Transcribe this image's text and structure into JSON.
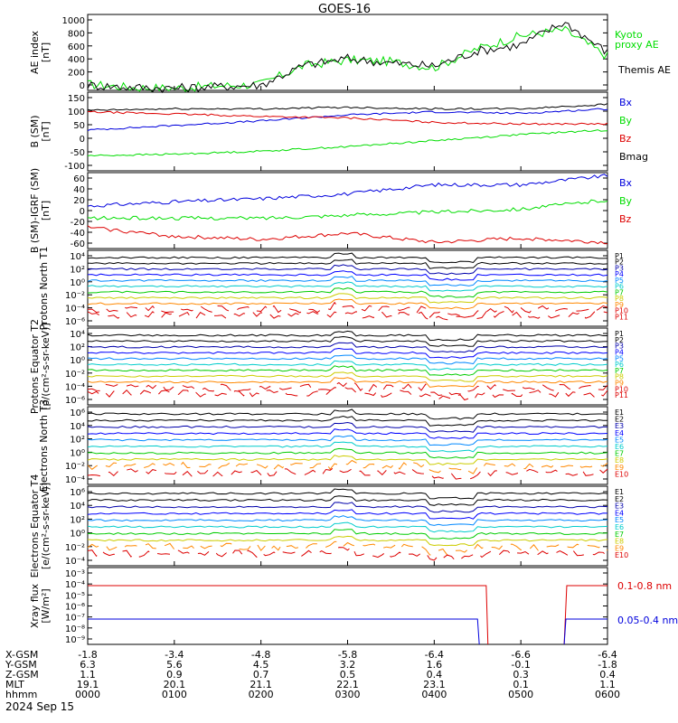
{
  "title": "GOES-16",
  "date_label": "2024 Sep 15",
  "x_axis": {
    "ticks": [
      "0000",
      "0100",
      "0200",
      "0300",
      "0400",
      "0500",
      "0600"
    ],
    "rows": [
      {
        "label": "X-GSM",
        "values": [
          "-1.8",
          "-3.4",
          "-4.8",
          "-5.8",
          "-6.4",
          "-6.6",
          "-6.4"
        ]
      },
      {
        "label": "Y-GSM",
        "values": [
          "6.3",
          "5.6",
          "4.5",
          "3.2",
          "1.6",
          "-0.1",
          "-1.8"
        ]
      },
      {
        "label": "Z-GSM",
        "values": [
          "1.1",
          "0.9",
          "0.7",
          "0.5",
          "0.4",
          "0.3",
          "0.4"
        ]
      },
      {
        "label": "MLT",
        "values": [
          "19.1",
          "20.1",
          "21.1",
          "22.1",
          "23.1",
          "0.1",
          "1.1"
        ]
      },
      {
        "label": "hhmm",
        "values": [
          "0000",
          "0100",
          "0200",
          "0300",
          "0400",
          "0500",
          "0600"
        ]
      }
    ]
  },
  "colors": {
    "black": "#000000",
    "green": "#00dd00",
    "blue": "#0000dd",
    "red": "#dd0000"
  },
  "chart_data": [
    {
      "type": "line",
      "ylabel": "AE index [nT]",
      "ylim": [
        0,
        1000
      ],
      "ytick_labels": [
        "1000",
        "800",
        "600",
        "400",
        "200",
        "0"
      ],
      "x_hours": [
        0,
        0.5,
        1,
        1.5,
        2,
        2.5,
        3,
        3.5,
        4,
        4.5,
        5,
        5.5,
        6
      ],
      "series": [
        {
          "name": "Kyoto proxy AE",
          "color": "#00dd00",
          "values": [
            80,
            40,
            30,
            60,
            80,
            330,
            400,
            380,
            300,
            550,
            720,
            800,
            450
          ]
        },
        {
          "name": "Themis AE",
          "color": "#000000",
          "values": [
            70,
            40,
            30,
            50,
            70,
            330,
            420,
            360,
            320,
            520,
            600,
            900,
            500
          ]
        }
      ]
    },
    {
      "type": "line",
      "ylabel": "B (SM) [nT]",
      "ylim": [
        -110,
        150
      ],
      "ytick_labels": [
        "150",
        "100",
        "50",
        "0",
        "-50",
        "-100"
      ],
      "x_hours": [
        0,
        1,
        2,
        3,
        4,
        5,
        6
      ],
      "series": [
        {
          "name": "Bx",
          "color": "#0000dd",
          "values": [
            25,
            40,
            55,
            75,
            85,
            80,
            95
          ]
        },
        {
          "name": "By",
          "color": "#00dd00",
          "values": [
            -60,
            -55,
            -45,
            -30,
            -10,
            10,
            25
          ]
        },
        {
          "name": "Bz",
          "color": "#dd0000",
          "values": [
            85,
            78,
            70,
            65,
            50,
            45,
            45
          ]
        },
        {
          "name": "Bmag",
          "color": "#000000",
          "values": [
            90,
            95,
            95,
            100,
            95,
            95,
            110
          ]
        }
      ]
    },
    {
      "type": "line",
      "ylabel": "B (SM)-IGRF (SM) [nT]",
      "ylim": [
        -65,
        60
      ],
      "ytick_labels": [
        "60",
        "40",
        "20",
        "0",
        "-20",
        "-40",
        "-60"
      ],
      "x_hours": [
        0,
        1,
        2,
        3,
        4,
        5,
        6
      ],
      "series": [
        {
          "name": "Bx",
          "color": "#0000dd",
          "values": [
            5,
            12,
            17,
            25,
            40,
            40,
            55
          ]
        },
        {
          "name": "By",
          "color": "#00dd00",
          "values": [
            -15,
            -15,
            -15,
            -10,
            -5,
            0,
            15
          ]
        },
        {
          "name": "Bz",
          "color": "#dd0000",
          "values": [
            -30,
            -45,
            -50,
            -40,
            -55,
            -48,
            -55
          ]
        }
      ]
    },
    {
      "type": "line",
      "ylabel": "Protons North T1",
      "yscale": "log",
      "ytick_labels": [
        "10⁴",
        "10²",
        "10⁰",
        "10⁻²",
        "10⁻⁴",
        "10⁻⁶"
      ],
      "legend": [
        "P1",
        "P2",
        "P3",
        "P4",
        "P5",
        "P6",
        "P7",
        "P8",
        "P9",
        "P10",
        "P11"
      ]
    },
    {
      "type": "line",
      "ylabel": "Protons Equator T2 [p/(cm²-s-sr-keV)]",
      "yscale": "log",
      "ytick_labels": [
        "10⁴",
        "10²",
        "10⁰",
        "10⁻²",
        "10⁻⁴",
        "10⁻⁶"
      ],
      "legend": [
        "P1",
        "P2",
        "P3",
        "P4",
        "P5",
        "P6",
        "P7",
        "P8",
        "P9",
        "P10",
        "P11"
      ]
    },
    {
      "type": "line",
      "ylabel": "Electrons North T3",
      "yscale": "log",
      "ytick_labels": [
        "10⁶",
        "10⁴",
        "10²",
        "10⁰",
        "10⁻²",
        "10⁻⁴"
      ],
      "legend": [
        "E1",
        "E2",
        "E3",
        "E4",
        "E5",
        "E6",
        "E7",
        "E8",
        "E9",
        "E10"
      ]
    },
    {
      "type": "line",
      "ylabel": "Electrons Equator T4 [e/(cm²-s-sr-keV)]",
      "yscale": "log",
      "ytick_labels": [
        "10⁶",
        "10⁴",
        "10²",
        "10⁰",
        "10⁻²",
        "10⁻⁴"
      ],
      "legend": [
        "E1",
        "E2",
        "E3",
        "E4",
        "E5",
        "E6",
        "E7",
        "E8",
        "E9",
        "E10"
      ]
    },
    {
      "type": "line",
      "ylabel": "Xray flux [W/m²]",
      "yscale": "log",
      "ytick_labels": [
        "10⁻³",
        "10⁻⁴",
        "10⁻⁵",
        "10⁻⁶",
        "10⁻⁷",
        "10⁻⁸",
        "10⁻⁹"
      ],
      "series": [
        {
          "name": "0.1-0.8 nm",
          "color": "#dd0000"
        },
        {
          "name": "0.05-0.4 nm",
          "color": "#0000dd"
        }
      ]
    }
  ]
}
